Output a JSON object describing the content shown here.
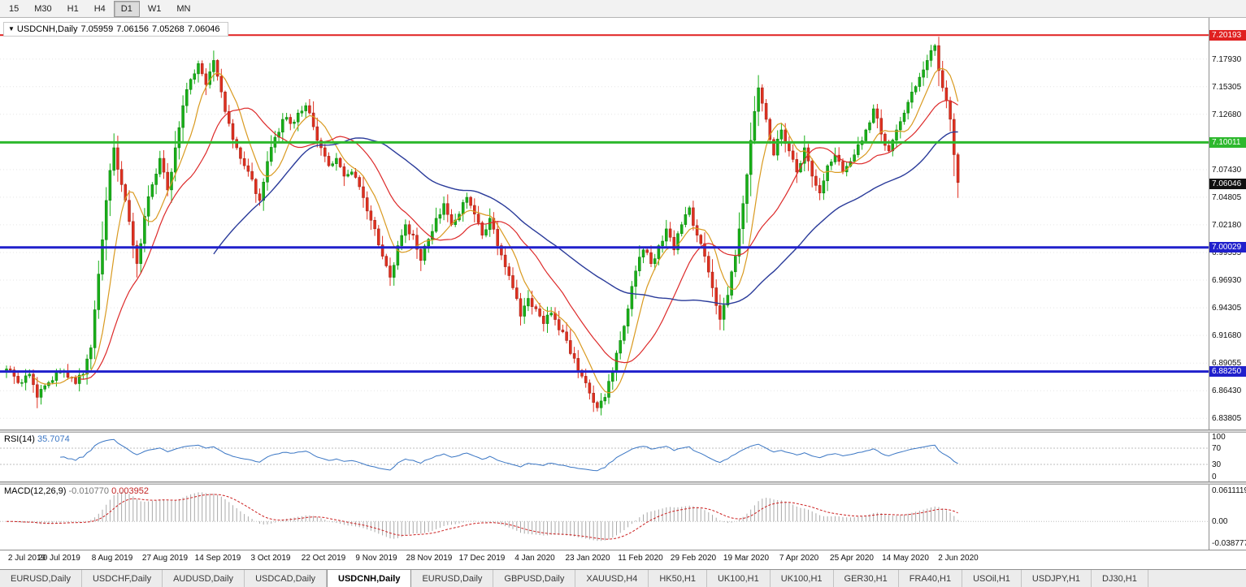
{
  "toolbar": {
    "timeframes": [
      {
        "label": "15",
        "active": false
      },
      {
        "label": "M30",
        "active": false
      },
      {
        "label": "H1",
        "active": false
      },
      {
        "label": "H4",
        "active": false
      },
      {
        "label": "D1",
        "active": true
      },
      {
        "label": "W1",
        "active": false
      },
      {
        "label": "MN",
        "active": false
      }
    ]
  },
  "chart": {
    "title": {
      "symbol": "USDCNH,Daily",
      "open": "7.05959",
      "high": "7.06156",
      "low": "7.05268",
      "close": "7.06046"
    },
    "price_ticks": [
      "7.17930",
      "7.15305",
      "7.12680",
      "7.10055",
      "7.07430",
      "7.04805",
      "7.02180",
      "6.99555",
      "6.96930",
      "6.94305",
      "6.91680",
      "6.89055",
      "6.86430",
      "6.83805"
    ],
    "price_badges": [
      {
        "text": "7.20193",
        "price": 7.20193,
        "color": "#e02020"
      },
      {
        "text": "7.10011",
        "price": 7.10011,
        "color": "#2db82d"
      },
      {
        "text": "7.06046",
        "price": 7.06046,
        "color": "#101010"
      },
      {
        "text": "7.00029",
        "price": 7.00029,
        "color": "#2020cc"
      },
      {
        "text": "6.88250",
        "price": 6.8825,
        "color": "#2020cc"
      }
    ],
    "hlines": [
      {
        "price": 7.20193,
        "color": "#e02020",
        "width": 2
      },
      {
        "price": 7.10011,
        "color": "#2db82d",
        "width": 3
      },
      {
        "price": 7.00029,
        "color": "#2020cc",
        "width": 3
      },
      {
        "price": 6.8825,
        "color": "#2020cc",
        "width": 3
      }
    ]
  },
  "rsi": {
    "label": "RSI(14)",
    "value": "35.7074",
    "axis_labels": [
      "100",
      "70",
      "30",
      "0"
    ],
    "guide_levels": [
      70,
      30
    ],
    "line_color": "#3a76c4"
  },
  "macd": {
    "label": "MACD(12,26,9)",
    "value_main": "-0.010770",
    "value_signal": "0.003952",
    "axis_top": "0.0611119",
    "axis_zero": "0.00",
    "axis_bottom": "-0.038777"
  },
  "tabs": [
    {
      "label": "EURUSD,Daily",
      "active": false
    },
    {
      "label": "USDCHF,Daily",
      "active": false
    },
    {
      "label": "AUDUSD,Daily",
      "active": false
    },
    {
      "label": "USDCAD,Daily",
      "active": false
    },
    {
      "label": "USDCNH,Daily",
      "active": true
    },
    {
      "label": "EURUSD,Daily",
      "active": false
    },
    {
      "label": "GBPUSD,Daily",
      "active": false
    },
    {
      "label": "XAUUSD,H4",
      "active": false
    },
    {
      "label": "HK50,H1",
      "active": false
    },
    {
      "label": "UK100,H1",
      "active": false
    },
    {
      "label": "UK100,H1",
      "active": false
    },
    {
      "label": "GER30,H1",
      "active": false
    },
    {
      "label": "FRA40,H1",
      "active": false
    },
    {
      "label": "USOil,H1",
      "active": false
    },
    {
      "label": "USDJPY,H1",
      "active": false
    },
    {
      "label": "DJ30,H1",
      "active": false
    }
  ],
  "chart_data": {
    "type": "candlestick",
    "title": "USDCNH, Daily",
    "last_quote": {
      "open": 7.05959,
      "high": 7.06156,
      "low": 7.05268,
      "close": 7.06046
    },
    "y_range": [
      6.829,
      7.2176
    ],
    "x_tick_labels": [
      "2 Jul 2019",
      "20 Jul 2019",
      "8 Aug 2019",
      "27 Aug 2019",
      "14 Sep 2019",
      "3 Oct 2019",
      "22 Oct 2019",
      "9 Nov 2019",
      "28 Nov 2019",
      "17 Dec 2019",
      "4 Jan 2020",
      "23 Jan 2020",
      "11 Feb 2020",
      "29 Feb 2020",
      "19 Mar 2020",
      "7 Apr 2020",
      "25 Apr 2020",
      "14 May 2020",
      "2 Jun 2020"
    ],
    "key_levels": [
      {
        "price": 7.20193,
        "color": "red",
        "role": "resistance"
      },
      {
        "price": 7.10011,
        "color": "green",
        "role": "pivot"
      },
      {
        "price": 7.00029,
        "color": "blue",
        "role": "support"
      },
      {
        "price": 6.8825,
        "color": "blue",
        "role": "support"
      }
    ],
    "close_series_sampled": [
      6.885,
      6.878,
      6.872,
      6.88,
      6.858,
      6.869,
      6.874,
      6.882,
      6.877,
      6.871,
      6.88,
      6.905,
      6.975,
      7.045,
      7.095,
      7.06,
      7.025,
      6.985,
      7.03,
      7.06,
      7.085,
      7.055,
      7.095,
      7.135,
      7.16,
      7.175,
      7.155,
      7.178,
      7.148,
      7.118,
      7.095,
      7.078,
      7.065,
      7.045,
      7.082,
      7.105,
      7.122,
      7.118,
      7.128,
      7.135,
      7.115,
      7.095,
      7.078,
      7.085,
      7.068,
      7.072,
      7.058,
      7.035,
      7.018,
      6.992,
      6.972,
      7.002,
      7.022,
      7.012,
      6.988,
      7.008,
      7.028,
      7.042,
      7.022,
      7.032,
      7.048,
      7.032,
      7.012,
      7.028,
      7.002,
      6.982,
      6.962,
      6.935,
      6.952,
      6.942,
      6.928,
      6.938,
      6.922,
      6.912,
      6.895,
      6.878,
      6.862,
      6.848,
      6.858,
      6.882,
      6.912,
      6.942,
      6.978,
      6.998,
      6.985,
      7.002,
      7.018,
      6.998,
      7.022,
      7.038,
      7.012,
      6.992,
      6.962,
      6.932,
      6.955,
      6.992,
      7.042,
      7.102,
      7.152,
      7.122,
      7.088,
      7.112,
      7.092,
      7.072,
      7.095,
      7.068,
      7.052,
      7.078,
      7.088,
      7.072,
      7.082,
      7.098,
      7.112,
      7.132,
      7.108,
      7.092,
      7.112,
      7.128,
      7.148,
      7.162,
      7.178,
      7.192,
      7.152,
      7.122,
      7.062
    ],
    "moving_average_periods": [
      8,
      20,
      55
    ],
    "indicators": [
      {
        "name": "RSI",
        "period": 14,
        "last": 35.7074,
        "range": [
          0,
          100
        ],
        "guide_levels": [
          70,
          30
        ]
      },
      {
        "name": "MACD",
        "params": [
          12,
          26,
          9
        ],
        "last_main": -0.01077,
        "last_signal": 0.003952
      }
    ]
  }
}
